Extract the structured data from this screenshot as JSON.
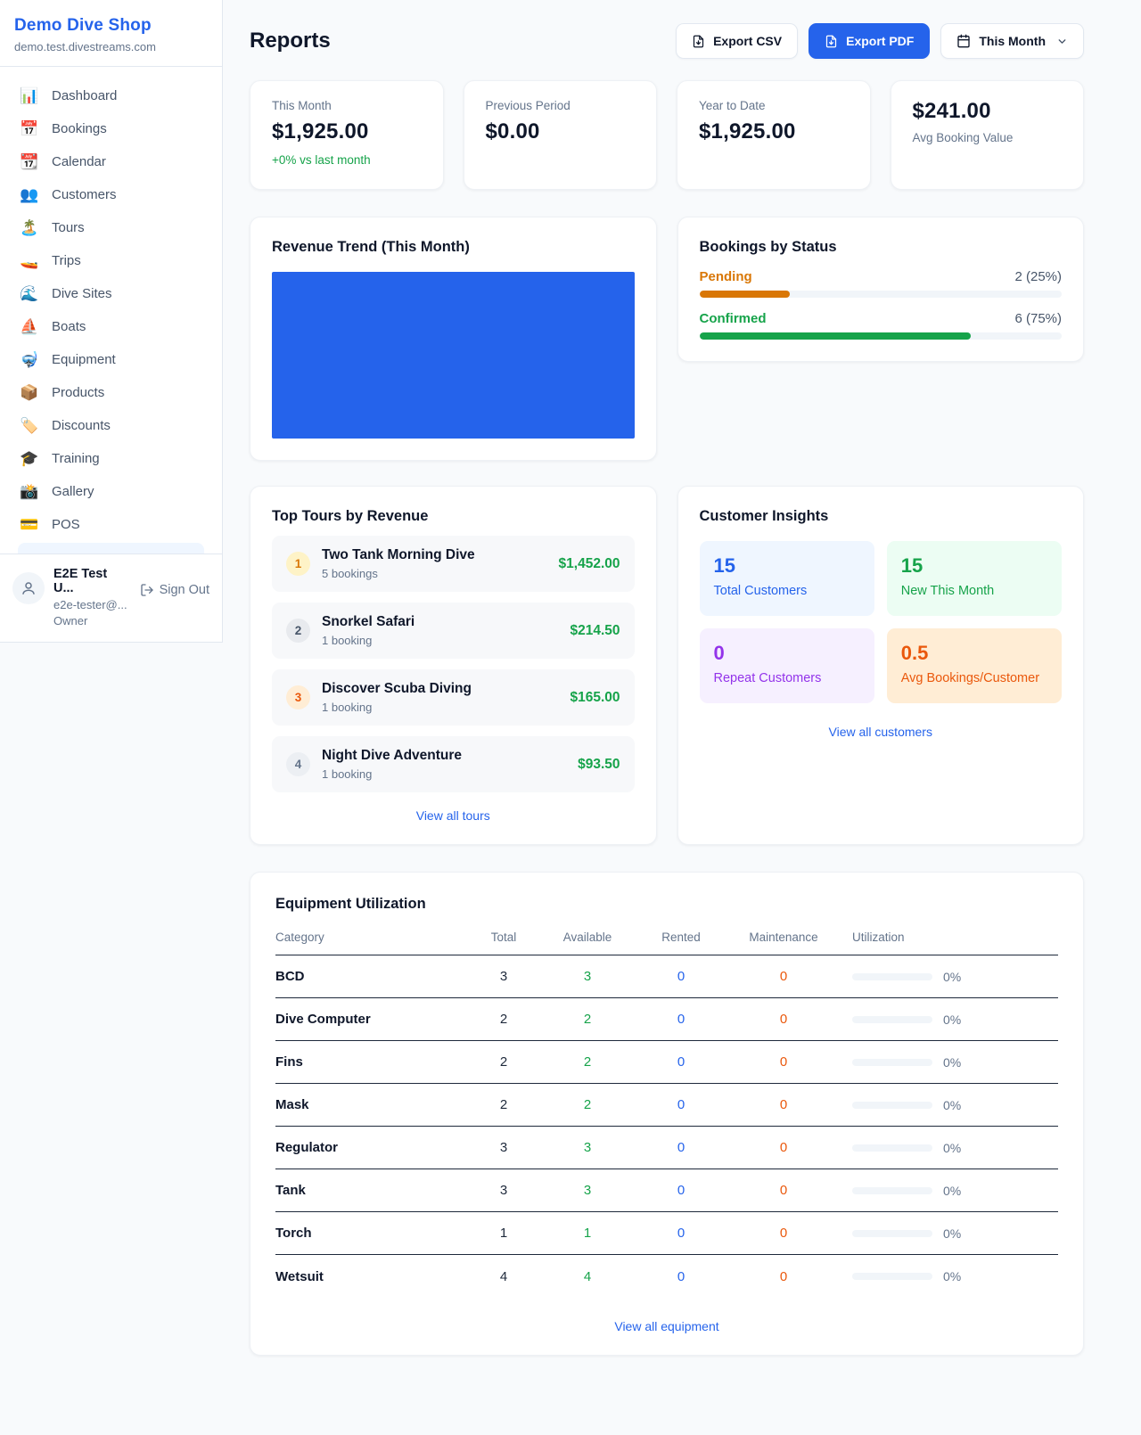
{
  "colors": {
    "accent_blue": "#2563eb",
    "green": "#16a34a",
    "pending_orange": "#d97706",
    "deep_orange": "#ea580c",
    "purple": "#9333ea",
    "gray_text": "#64748b",
    "chart_bar_blue": "#2563eb"
  },
  "sidebar": {
    "shop_name": "Demo Dive Shop",
    "shop_domain": "demo.test.divestreams.com",
    "nav": [
      {
        "icon": "📊",
        "label": "Dashboard"
      },
      {
        "icon": "📅",
        "label": "Bookings"
      },
      {
        "icon": "📆",
        "label": "Calendar"
      },
      {
        "icon": "👥",
        "label": "Customers"
      },
      {
        "icon": "🏝️",
        "label": "Tours"
      },
      {
        "icon": "🚤",
        "label": "Trips"
      },
      {
        "icon": "🌊",
        "label": "Dive Sites"
      },
      {
        "icon": "⛵",
        "label": "Boats"
      },
      {
        "icon": "🤿",
        "label": "Equipment"
      },
      {
        "icon": "📦",
        "label": "Products"
      },
      {
        "icon": "🏷️",
        "label": "Discounts"
      },
      {
        "icon": "🎓",
        "label": "Training"
      },
      {
        "icon": "📸",
        "label": "Gallery"
      },
      {
        "icon": "💳",
        "label": "POS"
      }
    ],
    "user": {
      "name": "E2E Test U...",
      "email": "e2e-tester@...",
      "role": "Owner",
      "sign_out_label": "Sign Out"
    }
  },
  "header": {
    "title": "Reports",
    "export_csv_label": "Export CSV",
    "export_pdf_label": "Export PDF",
    "period_label": "This Month"
  },
  "stats": [
    {
      "label": "This Month",
      "value": "$1,925.00",
      "delta": "+0% vs last month"
    },
    {
      "label": "Previous Period",
      "value": "$0.00"
    },
    {
      "label": "Year to Date",
      "value": "$1,925.00"
    },
    {
      "label": "Avg Booking Value",
      "value": "$241.00"
    }
  ],
  "revenue_trend": {
    "title": "Revenue Trend (This Month)",
    "bar_color": "#2563eb"
  },
  "bookings_by_status": {
    "title": "Bookings by Status",
    "rows": [
      {
        "label": "Pending",
        "value_text": "2 (25%)",
        "percent": 25,
        "color": "#d97706"
      },
      {
        "label": "Confirmed",
        "value_text": "6 (75%)",
        "percent": 75,
        "color": "#16a34a"
      }
    ]
  },
  "top_tours": {
    "title": "Top Tours by Revenue",
    "view_all": "View all tours",
    "items": [
      {
        "rank": "1",
        "name": "Two Tank Morning Dive",
        "bookings": "5 bookings",
        "amount": "$1,452.00",
        "badge_bg": "#fef3c7",
        "badge_color": "#d97706"
      },
      {
        "rank": "2",
        "name": "Snorkel Safari",
        "bookings": "1 booking",
        "amount": "$214.50",
        "badge_bg": "#e8eaee",
        "badge_color": "#475569"
      },
      {
        "rank": "3",
        "name": "Discover Scuba Diving",
        "bookings": "1 booking",
        "amount": "$165.00",
        "badge_bg": "#ffedd5",
        "badge_color": "#ea580c"
      },
      {
        "rank": "4",
        "name": "Night Dive Adventure",
        "bookings": "1 booking",
        "amount": "$93.50",
        "badge_bg": "#eceff3",
        "badge_color": "#64748b"
      }
    ]
  },
  "customer_insights": {
    "title": "Customer Insights",
    "view_all": "View all customers",
    "tiles": [
      {
        "value": "15",
        "label": "Total Customers",
        "bg": "#eff6ff",
        "color": "#2563eb"
      },
      {
        "value": "15",
        "label": "New This Month",
        "bg": "#ecfdf3",
        "color": "#16a34a"
      },
      {
        "value": "0",
        "label": "Repeat Customers",
        "bg": "#f6f0ff",
        "color": "#9333ea"
      },
      {
        "value": "0.5",
        "label": "Avg Bookings/Customer",
        "bg": "#ffedd5",
        "color": "#ea580c"
      }
    ]
  },
  "equipment": {
    "title": "Equipment Utilization",
    "view_all": "View all equipment",
    "columns": [
      "Category",
      "Total",
      "Available",
      "Rented",
      "Maintenance",
      "Utilization"
    ],
    "rows": [
      {
        "category": "BCD",
        "total": "3",
        "available": "3",
        "rented": "0",
        "maintenance": "0",
        "utilization": "0%"
      },
      {
        "category": "Dive Computer",
        "total": "2",
        "available": "2",
        "rented": "0",
        "maintenance": "0",
        "utilization": "0%"
      },
      {
        "category": "Fins",
        "total": "2",
        "available": "2",
        "rented": "0",
        "maintenance": "0",
        "utilization": "0%"
      },
      {
        "category": "Mask",
        "total": "2",
        "available": "2",
        "rented": "0",
        "maintenance": "0",
        "utilization": "0%"
      },
      {
        "category": "Regulator",
        "total": "3",
        "available": "3",
        "rented": "0",
        "maintenance": "0",
        "utilization": "0%"
      },
      {
        "category": "Tank",
        "total": "3",
        "available": "3",
        "rented": "0",
        "maintenance": "0",
        "utilization": "0%"
      },
      {
        "category": "Torch",
        "total": "1",
        "available": "1",
        "rented": "0",
        "maintenance": "0",
        "utilization": "0%"
      },
      {
        "category": "Wetsuit",
        "total": "4",
        "available": "4",
        "rented": "0",
        "maintenance": "0",
        "utilization": "0%"
      }
    ]
  }
}
